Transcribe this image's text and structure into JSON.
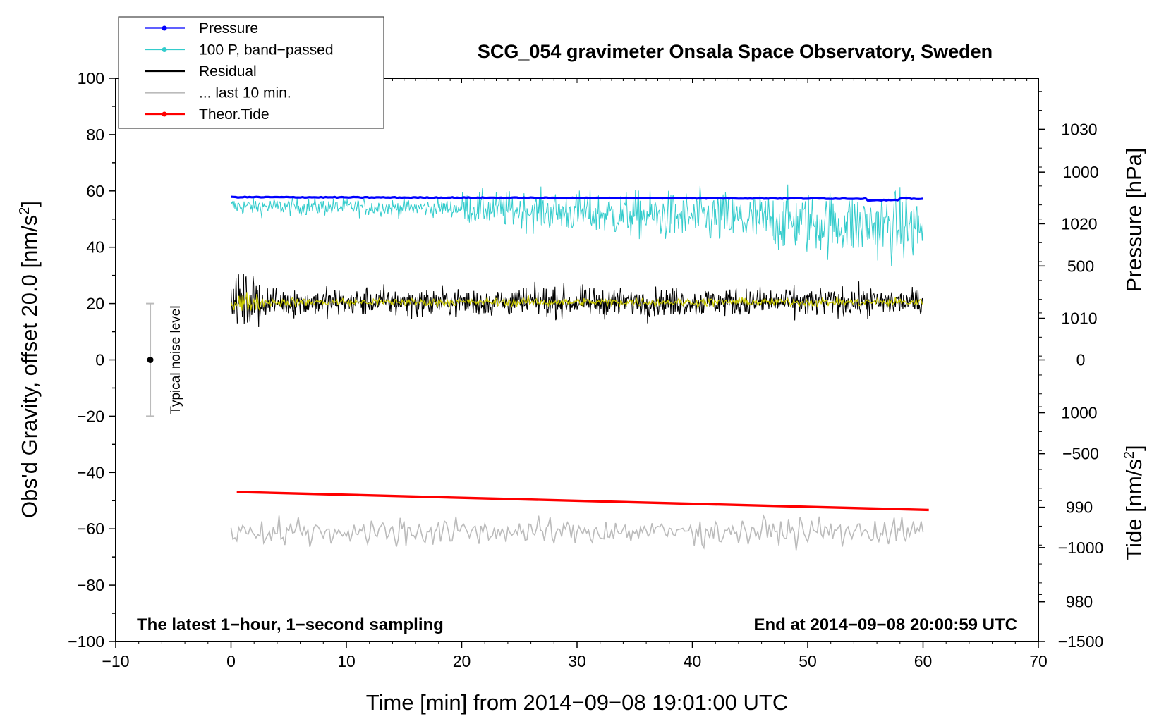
{
  "chart_data": {
    "type": "line",
    "title": "SCG_054 gravimeter Onsala Space Observatory, Sweden",
    "xlabel": "Time [min] from 2014−09−08 19:01:00 UTC",
    "ylabel": "Obs'd Gravity, offset 20.0 [nm/s²]",
    "ylabel_main": "Obs'd Gravity, offset 20.0 [nm/s",
    "ylabel_sup": "2",
    "ylabel_end": "]",
    "xlim": [
      -10,
      70
    ],
    "ylim": [
      -100,
      100
    ],
    "x_ticks": [
      -10,
      0,
      10,
      20,
      30,
      40,
      50,
      60,
      70
    ],
    "x_tick_labels": [
      "−10",
      "0",
      "10",
      "20",
      "30",
      "40",
      "50",
      "60",
      "70"
    ],
    "y_ticks": [
      100,
      80,
      60,
      40,
      20,
      0,
      -20,
      -40,
      -60,
      -80,
      -100
    ],
    "y_tick_labels": [
      "100",
      "80",
      "60",
      "40",
      "20",
      "0",
      "−20",
      "−40",
      "−60",
      "−80",
      "−100"
    ],
    "right_axis_pressure": {
      "label": "Pressure [hPa]",
      "ticks": [
        1030,
        1020,
        1010,
        1000,
        990,
        980
      ],
      "tick_labels": [
        "1030",
        "1020",
        "1010",
        "1000",
        "990",
        "980"
      ],
      "range_hpa": [
        975.8,
        1035.4
      ]
    },
    "right_axis_tide": {
      "label": "Tide [nm/s²]",
      "label_main": "Tide [nm/s",
      "label_sup": "2",
      "label_end": "]",
      "ticks": [
        1000,
        500,
        0,
        -500,
        -1000,
        -1500
      ],
      "tick_labels": [
        "1000",
        "500",
        "0",
        "−500",
        "−1000",
        "−1500"
      ],
      "range": [
        -1500,
        1500
      ]
    },
    "legend": [
      {
        "label": "Pressure",
        "color": "#0000ff",
        "marker": true
      },
      {
        "label": "100 P, band−passed",
        "color": "#33cccc",
        "marker": true
      },
      {
        "label": "Residual",
        "color": "#000000",
        "marker": false
      },
      {
        "label": "... last 10 min.",
        "color": "#bbbbbb",
        "marker": false
      },
      {
        "label": "Theor.Tide",
        "color": "#ff0000",
        "marker": true
      }
    ],
    "noise_level": {
      "label": "Typical noise level",
      "x": -7,
      "center": 0,
      "low": -20,
      "high": 20
    },
    "note_left": "The latest 1−hour, 1−second sampling",
    "note_right": "End at 2014−09−08 20:00:59 UTC",
    "series": [
      {
        "name": "Pressure",
        "color": "#0000ff",
        "x_range": [
          0,
          60
        ],
        "y_start": 57.8,
        "y_end": 57.2,
        "noise_amplitude": 0.4
      },
      {
        "name": "100 P, band-passed",
        "color": "#33cccc",
        "x_range": [
          0,
          60
        ],
        "center_start": 54,
        "center_end": 47,
        "amplitude_start": 3,
        "amplitude_end": 9
      },
      {
        "name": "Residual",
        "color": "#000000",
        "x_range": [
          0,
          60
        ],
        "center": 20.5,
        "amplitude": 4.5
      },
      {
        "name": "Residual (smoothed)",
        "color": "#cccc00",
        "x_range": [
          0,
          60
        ],
        "center": 20.5,
        "amplitude": 1.5
      },
      {
        "name": "... last 10 min.",
        "color": "#bbbbbb",
        "x_range": [
          0,
          60
        ],
        "center": -61,
        "amplitude": 4
      },
      {
        "name": "Theor.Tide",
        "color": "#ff0000",
        "x": [
          0.5,
          60.5
        ],
        "y": [
          -46.9,
          -53.3
        ]
      }
    ],
    "colors": {
      "axis": "#000000",
      "noise_bar": "#bbbbbb"
    }
  }
}
